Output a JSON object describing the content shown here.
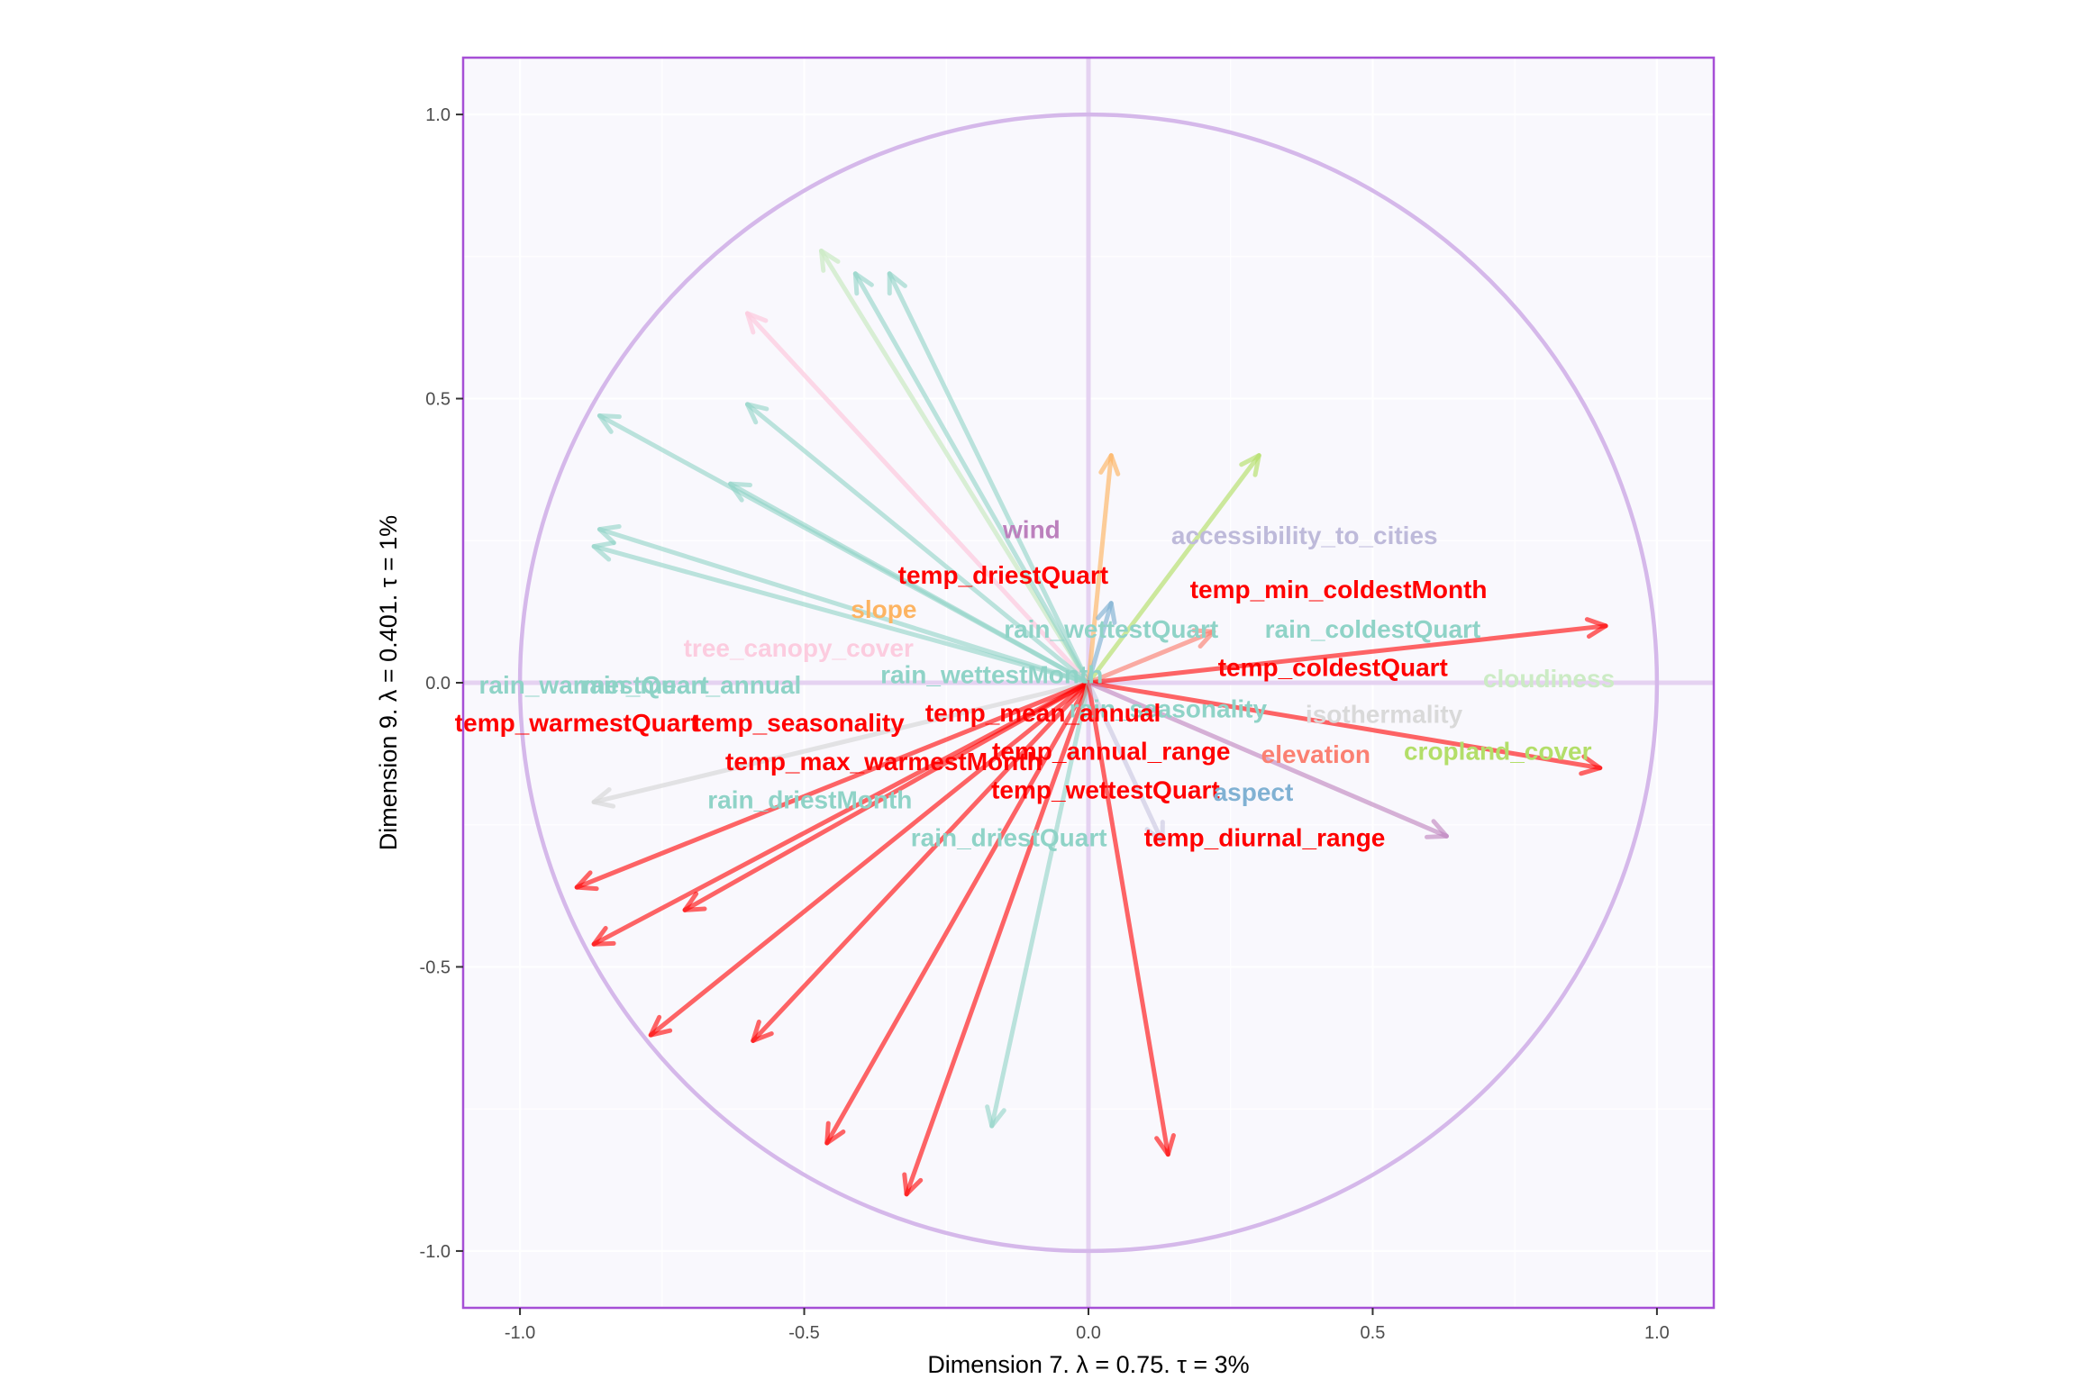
{
  "chart_data": {
    "type": "scatter",
    "subtype": "correlation-circle",
    "xlabel": "Dimension 7.   λ = 0.75.  τ = 3%",
    "ylabel": "Dimension 9.   λ = 0.401.  τ = 1%",
    "xlim": [
      -1.1,
      1.1
    ],
    "ylim": [
      -1.1,
      1.1
    ],
    "x_ticks": [
      -1.0,
      -0.5,
      0.0,
      0.5,
      1.0
    ],
    "x_tick_labels": [
      "-1.0",
      "-0.5",
      "0.0",
      "0.5",
      "1.0"
    ],
    "y_ticks": [
      -1.0,
      -0.5,
      0.0,
      0.5,
      1.0
    ],
    "y_tick_labels": [
      "-1.0",
      "-0.5",
      "0.0",
      "0.5",
      "1.0"
    ],
    "grid": true,
    "legend": "none",
    "colors": {
      "panel_background": "#f9f8fd",
      "panel_border": "#a64fd6",
      "unit_circle": "#d5b8ea",
      "origin_lines": "#e5d2f1",
      "highlight": "#ff0000",
      "teal": "#8fd3c7",
      "gray": "#d9d9d9",
      "purple": "#bc80bd",
      "pink": "#fcccdf",
      "orange": "#fdb462",
      "green": "#b3de69",
      "mint": "#ccebc5",
      "lavender": "#bebada",
      "salmon": "#fb8072",
      "blue": "#80b1d3"
    },
    "arrows": [
      {
        "x": -0.47,
        "y": 0.76,
        "color": "#ccebc5",
        "alpha": 0.75
      },
      {
        "x": -0.41,
        "y": 0.72,
        "color": "#8fd3c7",
        "alpha": 0.6
      },
      {
        "x": -0.35,
        "y": 0.72,
        "color": "#8fd3c7",
        "alpha": 0.6
      },
      {
        "x": -0.6,
        "y": 0.65,
        "color": "#fcccdf",
        "alpha": 0.75
      },
      {
        "x": -0.86,
        "y": 0.47,
        "color": "#8fd3c7",
        "alpha": 0.6
      },
      {
        "x": -0.6,
        "y": 0.49,
        "color": "#8fd3c7",
        "alpha": 0.6
      },
      {
        "x": -0.63,
        "y": 0.35,
        "color": "#8fd3c7",
        "alpha": 0.6
      },
      {
        "x": -0.86,
        "y": 0.27,
        "color": "#8fd3c7",
        "alpha": 0.6
      },
      {
        "x": -0.87,
        "y": 0.24,
        "color": "#8fd3c7",
        "alpha": 0.6
      },
      {
        "x": 0.04,
        "y": 0.4,
        "color": "#fdb462",
        "alpha": 0.65
      },
      {
        "x": 0.3,
        "y": 0.4,
        "color": "#b3de69",
        "alpha": 0.65
      },
      {
        "x": 0.04,
        "y": 0.14,
        "color": "#80b1d3",
        "alpha": 0.65
      },
      {
        "x": 0.22,
        "y": 0.09,
        "color": "#fb8072",
        "alpha": 0.65
      },
      {
        "x": 0.91,
        "y": 0.1,
        "color": "#ff0000",
        "alpha": 0.6
      },
      {
        "x": 0.9,
        "y": -0.15,
        "color": "#ff0000",
        "alpha": 0.6
      },
      {
        "x": 0.63,
        "y": -0.27,
        "color": "#bc80bd",
        "alpha": 0.6
      },
      {
        "x": -0.87,
        "y": -0.21,
        "color": "#d9d9d9",
        "alpha": 0.7
      },
      {
        "x": -0.9,
        "y": -0.36,
        "color": "#ff0000",
        "alpha": 0.6
      },
      {
        "x": -0.71,
        "y": -0.4,
        "color": "#ff0000",
        "alpha": 0.6
      },
      {
        "x": -0.87,
        "y": -0.46,
        "color": "#ff0000",
        "alpha": 0.6
      },
      {
        "x": -0.77,
        "y": -0.62,
        "color": "#ff0000",
        "alpha": 0.6
      },
      {
        "x": -0.59,
        "y": -0.63,
        "color": "#ff0000",
        "alpha": 0.6
      },
      {
        "x": -0.46,
        "y": -0.81,
        "color": "#ff0000",
        "alpha": 0.6
      },
      {
        "x": -0.32,
        "y": -0.9,
        "color": "#ff0000",
        "alpha": 0.6
      },
      {
        "x": -0.17,
        "y": -0.78,
        "color": "#8fd3c7",
        "alpha": 0.6
      },
      {
        "x": 0.14,
        "y": -0.83,
        "color": "#ff0000",
        "alpha": 0.6
      },
      {
        "x": 0.13,
        "y": -0.28,
        "color": "#bebada",
        "alpha": 0.5
      }
    ],
    "labels": [
      {
        "text": "wind",
        "x": -0.1,
        "y": 0.27,
        "color": "#bc80bd"
      },
      {
        "text": "accessibility_to_cities",
        "x": 0.38,
        "y": 0.26,
        "color": "#bebada"
      },
      {
        "text": "temp_driestQuart",
        "x": -0.15,
        "y": 0.19,
        "color": "#ff0000"
      },
      {
        "text": "temp_min_coldestMonth",
        "x": 0.44,
        "y": 0.165,
        "color": "#ff0000"
      },
      {
        "text": "slope",
        "x": -0.36,
        "y": 0.13,
        "color": "#fdb462"
      },
      {
        "text": "rain_wettestQuart",
        "x": 0.04,
        "y": 0.095,
        "color": "#8fd3c7"
      },
      {
        "text": "rain_coldestQuart",
        "x": 0.5,
        "y": 0.095,
        "color": "#8fd3c7"
      },
      {
        "text": "tree_canopy_cover",
        "x": -0.51,
        "y": 0.062,
        "color": "#fcccdf"
      },
      {
        "text": "temp_coldestQuart",
        "x": 0.43,
        "y": 0.028,
        "color": "#ff0000"
      },
      {
        "text": "rain_wettestMonth",
        "x": -0.17,
        "y": 0.015,
        "color": "#8fd3c7"
      },
      {
        "text": "cloudiness",
        "x": 0.81,
        "y": 0.008,
        "color": "#ccebc5"
      },
      {
        "text": "rain_warmestQuart",
        "x": -0.87,
        "y": -0.003,
        "color": "#8fd3c7"
      },
      {
        "text": "rain_mean_annual",
        "x": -0.7,
        "y": -0.003,
        "color": "#8fd3c7"
      },
      {
        "text": "rain_seasonality",
        "x": 0.14,
        "y": -0.045,
        "color": "#8fd3c7"
      },
      {
        "text": "temp_mean_annual",
        "x": -0.08,
        "y": -0.052,
        "color": "#ff0000"
      },
      {
        "text": "isothermality",
        "x": 0.52,
        "y": -0.055,
        "color": "#d9d9d9"
      },
      {
        "text": "temp_warmestQuart",
        "x": -0.9,
        "y": -0.07,
        "color": "#ff0000"
      },
      {
        "text": "temp_seasonality",
        "x": -0.51,
        "y": -0.07,
        "color": "#ff0000"
      },
      {
        "text": "temp_annual_range",
        "x": 0.04,
        "y": -0.12,
        "color": "#ff0000"
      },
      {
        "text": "elevation",
        "x": 0.4,
        "y": -0.125,
        "color": "#fb8072"
      },
      {
        "text": "cropland_cover",
        "x": 0.72,
        "y": -0.12,
        "color": "#b3de69"
      },
      {
        "text": "temp_max_warmestMonth",
        "x": -0.36,
        "y": -0.138,
        "color": "#ff0000"
      },
      {
        "text": "temp_wettestQuart",
        "x": 0.03,
        "y": -0.188,
        "color": "#ff0000"
      },
      {
        "text": "rain_driestMonth",
        "x": -0.49,
        "y": -0.205,
        "color": "#8fd3c7"
      },
      {
        "text": "aspect",
        "x": 0.29,
        "y": -0.192,
        "color": "#80b1d3"
      },
      {
        "text": "rain_driestQuart",
        "x": -0.14,
        "y": -0.272,
        "color": "#8fd3c7"
      },
      {
        "text": "temp_diurnal_range",
        "x": 0.31,
        "y": -0.272,
        "color": "#ff0000"
      }
    ]
  }
}
